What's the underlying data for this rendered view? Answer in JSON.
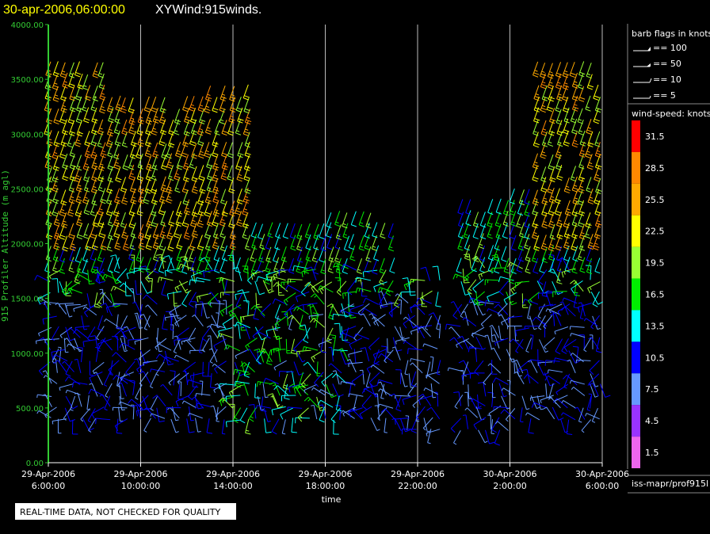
{
  "header": {
    "datetime": "30-apr-2006,06:00:00",
    "title": "XYWind:915winds."
  },
  "colors": {
    "background": "#000000",
    "datetime": "#ffff00",
    "title": "#ffffff",
    "y_axis": "#33cc33",
    "x_axis": "#ffffff",
    "grid": "#bbbbbb"
  },
  "chart_data": {
    "type": "wind-barb profiler time-height plot",
    "ylabel": "915 Profiler Altitude (m agl)",
    "xlabel": "time",
    "ylim": [
      0,
      4000
    ],
    "y_ticks": [
      0,
      500,
      1000,
      1500,
      2000,
      2500,
      3000,
      3500,
      4000
    ],
    "y_tick_labels": [
      "0.00",
      "500.00",
      "1000.00",
      "1500.00",
      "2000.00",
      "2500.00",
      "3000.00",
      "3500.00",
      "4000.00"
    ],
    "x_range_hours": [
      0,
      24
    ],
    "x_ticks": [
      {
        "hour": 0,
        "date": "29-Apr-2006",
        "time": "6:00:00"
      },
      {
        "hour": 4,
        "date": "29-Apr-2006",
        "time": "10:00:00"
      },
      {
        "hour": 8,
        "date": "29-Apr-2006",
        "time": "14:00:00"
      },
      {
        "hour": 12,
        "date": "29-Apr-2006",
        "time": "18:00:00"
      },
      {
        "hour": 16,
        "date": "29-Apr-2006",
        "time": "22:00:00"
      },
      {
        "hour": 20,
        "date": "30-Apr-2006",
        "time": "2:00:00"
      },
      {
        "hour": 24,
        "date": "30-Apr-2006",
        "time": "6:00:00"
      }
    ],
    "grid": true,
    "barb_legend": {
      "title": "barb flags in knots",
      "items": [
        {
          "symbol": "flag",
          "label": "== 100"
        },
        {
          "symbol": "pennant",
          "label": "== 50"
        },
        {
          "symbol": "full",
          "label": "== 10"
        },
        {
          "symbol": "half",
          "label": "== 5"
        }
      ]
    },
    "speed_legend": {
      "title": "wind-speed: knots",
      "levels": [
        {
          "label": "31.5",
          "color": "#ff0000"
        },
        {
          "label": "28.5",
          "color": "#ff8800"
        },
        {
          "label": "25.5",
          "color": "#ffaa00"
        },
        {
          "label": "22.5",
          "color": "#ffff00"
        },
        {
          "label": "19.5",
          "color": "#99ff33"
        },
        {
          "label": "16.5",
          "color": "#00ee00"
        },
        {
          "label": "13.5",
          "color": "#00ffff"
        },
        {
          "label": "10.5",
          "color": "#0000ff"
        },
        {
          "label": "7.5",
          "color": "#6699ff"
        },
        {
          "label": "4.5",
          "color": "#9933ff"
        },
        {
          "label": "1.5",
          "color": "#ee66ee"
        }
      ]
    },
    "source": "iss-mapr/prof915l"
  },
  "footer": {
    "quality_note": "REAL-TIME DATA, NOT CHECKED FOR QUALITY"
  }
}
